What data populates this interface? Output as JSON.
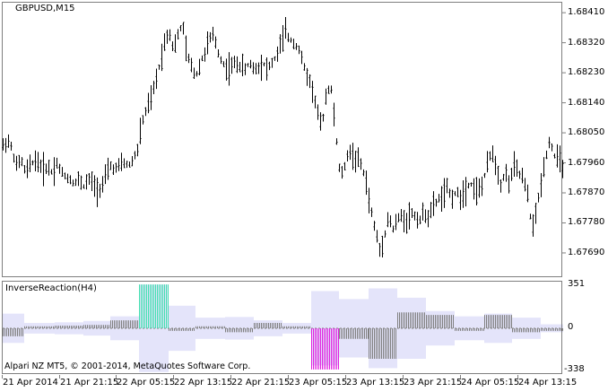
{
  "main_panel": {
    "symbol_label": "GBPUSD,M15",
    "price_ticks": [
      "1.68410",
      "1.68320",
      "1.68230",
      "1.68140",
      "1.68050",
      "1.67960",
      "1.67870",
      "1.67780",
      "1.67690"
    ],
    "price_min": 1.6762,
    "price_max": 1.6844
  },
  "indicator_panel": {
    "title": "InverseReaction(H4)",
    "scale_top": "351",
    "scale_zero": "0",
    "scale_bottom": "-338",
    "copyright": "Alpari NZ MT5, © 2001-2014, MetaQuotes Software Corp."
  },
  "time_axis": {
    "labels": [
      "21 Apr 2014",
      "21 Apr 21:15",
      "22 Apr 05:15",
      "22 Apr 13:15",
      "22 Apr 21:15",
      "23 Apr 05:15",
      "23 Apr 13:15",
      "23 Apr 21:15",
      "24 Apr 05:15",
      "24 Apr 13:15"
    ]
  },
  "colors": {
    "background": "#ffffff",
    "border": "#7f7f7f",
    "bars": "#000000",
    "histogram": "#7f7f7f",
    "band_fill": "#e4e4fa",
    "signal_up": "#40e0b0",
    "signal_down": "#e020e0"
  },
  "chart_data": [
    {
      "type": "ohlc",
      "title": "GBPUSD,M15",
      "ylim": [
        1.6762,
        1.6844
      ],
      "price_anchors": [
        [
          0,
          1.6801
        ],
        [
          5,
          1.6803
        ],
        [
          10,
          1.68
        ],
        [
          15,
          1.6795
        ],
        [
          20,
          1.6797
        ],
        [
          25,
          1.6793
        ],
        [
          30,
          1.6795
        ],
        [
          35,
          1.6797
        ],
        [
          40,
          1.6796
        ],
        [
          45,
          1.6794
        ],
        [
          50,
          1.6795
        ],
        [
          55,
          1.6793
        ],
        [
          60,
          1.6796
        ],
        [
          65,
          1.6793
        ],
        [
          70,
          1.6792
        ],
        [
          75,
          1.6791
        ],
        [
          80,
          1.679
        ],
        [
          85,
          1.6791
        ],
        [
          90,
          1.6789
        ],
        [
          95,
          1.6791
        ],
        [
          100,
          1.679
        ],
        [
          105,
          1.6788
        ],
        [
          110,
          1.6789
        ],
        [
          115,
          1.6792
        ],
        [
          120,
          1.6795
        ],
        [
          125,
          1.6794
        ],
        [
          130,
          1.6795
        ],
        [
          135,
          1.6796
        ],
        [
          140,
          1.6795
        ],
        [
          145,
          1.6797
        ],
        [
          150,
          1.68
        ],
        [
          155,
          1.6808
        ],
        [
          160,
          1.6812
        ],
        [
          165,
          1.6815
        ],
        [
          170,
          1.682
        ],
        [
          175,
          1.6826
        ],
        [
          180,
          1.6832
        ],
        [
          185,
          1.6836
        ],
        [
          190,
          1.683
        ],
        [
          195,
          1.6834
        ],
        [
          200,
          1.6838
        ],
        [
          205,
          1.6828
        ],
        [
          210,
          1.6825
        ],
        [
          215,
          1.6822
        ],
        [
          220,
          1.6826
        ],
        [
          225,
          1.6829
        ],
        [
          230,
          1.6833
        ],
        [
          235,
          1.6834
        ],
        [
          240,
          1.6829
        ],
        [
          245,
          1.6826
        ],
        [
          250,
          1.6824
        ],
        [
          255,
          1.6825
        ],
        [
          260,
          1.6826
        ],
        [
          265,
          1.6825
        ],
        [
          270,
          1.6824
        ],
        [
          275,
          1.6826
        ],
        [
          280,
          1.6824
        ],
        [
          285,
          1.6825
        ],
        [
          290,
          1.6826
        ],
        [
          295,
          1.6824
        ],
        [
          300,
          1.6826
        ],
        [
          305,
          1.6828
        ],
        [
          310,
          1.6832
        ],
        [
          315,
          1.6835
        ],
        [
          320,
          1.6833
        ],
        [
          325,
          1.6832
        ],
        [
          330,
          1.683
        ],
        [
          335,
          1.6825
        ],
        [
          340,
          1.6822
        ],
        [
          345,
          1.6818
        ],
        [
          350,
          1.6812
        ],
        [
          355,
          1.6806
        ],
        [
          360,
          1.6816
        ],
        [
          365,
          1.682
        ],
        [
          370,
          1.6808
        ],
        [
          375,
          1.6794
        ],
        [
          380,
          1.6793
        ],
        [
          385,
          1.68
        ],
        [
          390,
          1.6798
        ],
        [
          395,
          1.6797
        ],
        [
          400,
          1.6795
        ],
        [
          405,
          1.679
        ],
        [
          410,
          1.6782
        ],
        [
          415,
          1.6776
        ],
        [
          420,
          1.677
        ],
        [
          425,
          1.6774
        ],
        [
          430,
          1.678
        ],
        [
          435,
          1.6776
        ],
        [
          440,
          1.6779
        ],
        [
          445,
          1.678
        ],
        [
          450,
          1.6779
        ],
        [
          455,
          1.6781
        ],
        [
          460,
          1.678
        ],
        [
          465,
          1.6779
        ],
        [
          470,
          1.6781
        ],
        [
          475,
          1.678
        ],
        [
          480,
          1.6783
        ],
        [
          485,
          1.6785
        ],
        [
          490,
          1.6786
        ],
        [
          495,
          1.6788
        ],
        [
          500,
          1.6786
        ],
        [
          505,
          1.6787
        ],
        [
          510,
          1.6786
        ],
        [
          515,
          1.6788
        ],
        [
          520,
          1.679
        ],
        [
          525,
          1.6789
        ],
        [
          530,
          1.6787
        ],
        [
          535,
          1.679
        ],
        [
          540,
          1.6795
        ],
        [
          545,
          1.68
        ],
        [
          550,
          1.6795
        ],
        [
          555,
          1.679
        ],
        [
          560,
          1.6793
        ],
        [
          565,
          1.679
        ],
        [
          570,
          1.6795
        ],
        [
          575,
          1.6793
        ],
        [
          580,
          1.6791
        ],
        [
          585,
          1.6786
        ],
        [
          590,
          1.6776
        ],
        [
          595,
          1.6782
        ],
        [
          600,
          1.679
        ],
        [
          605,
          1.6798
        ],
        [
          610,
          1.6803
        ],
        [
          615,
          1.6798
        ],
        [
          620,
          1.6797
        ],
        [
          625,
          1.6795
        ]
      ]
    },
    {
      "type": "histogram",
      "title": "InverseReaction(H4)",
      "ylim": [
        -338,
        351
      ],
      "segments": [
        {
          "start": 0,
          "end": 24,
          "value": -60,
          "band": 110
        },
        {
          "start": 24,
          "end": 58,
          "value": 15,
          "band": 40
        },
        {
          "start": 58,
          "end": 90,
          "value": 20,
          "band": 45
        },
        {
          "start": 90,
          "end": 120,
          "value": 25,
          "band": 55
        },
        {
          "start": 120,
          "end": 152,
          "value": 60,
          "band": 90
        },
        {
          "start": 152,
          "end": 185,
          "value": 330,
          "band": 330
        },
        {
          "start": 185,
          "end": 215,
          "value": -20,
          "band": 170
        },
        {
          "start": 215,
          "end": 248,
          "value": 15,
          "band": 80
        },
        {
          "start": 248,
          "end": 280,
          "value": -30,
          "band": 85
        },
        {
          "start": 280,
          "end": 312,
          "value": 40,
          "band": 60
        },
        {
          "start": 312,
          "end": 344,
          "value": 15,
          "band": 40
        },
        {
          "start": 344,
          "end": 375,
          "value": -310,
          "band": 280
        },
        {
          "start": 375,
          "end": 408,
          "value": -80,
          "band": 220
        },
        {
          "start": 408,
          "end": 440,
          "value": -230,
          "band": 300
        },
        {
          "start": 440,
          "end": 472,
          "value": 120,
          "band": 230
        },
        {
          "start": 472,
          "end": 504,
          "value": 100,
          "band": 130
        },
        {
          "start": 504,
          "end": 537,
          "value": -20,
          "band": 90
        },
        {
          "start": 537,
          "end": 568,
          "value": 100,
          "band": 110
        },
        {
          "start": 568,
          "end": 600,
          "value": -30,
          "band": 80
        },
        {
          "start": 600,
          "end": 625,
          "value": -20,
          "band": 30
        }
      ],
      "signal_segments": [
        {
          "start": 152,
          "end": 185,
          "direction": "up"
        },
        {
          "start": 344,
          "end": 375,
          "direction": "down"
        }
      ]
    }
  ]
}
